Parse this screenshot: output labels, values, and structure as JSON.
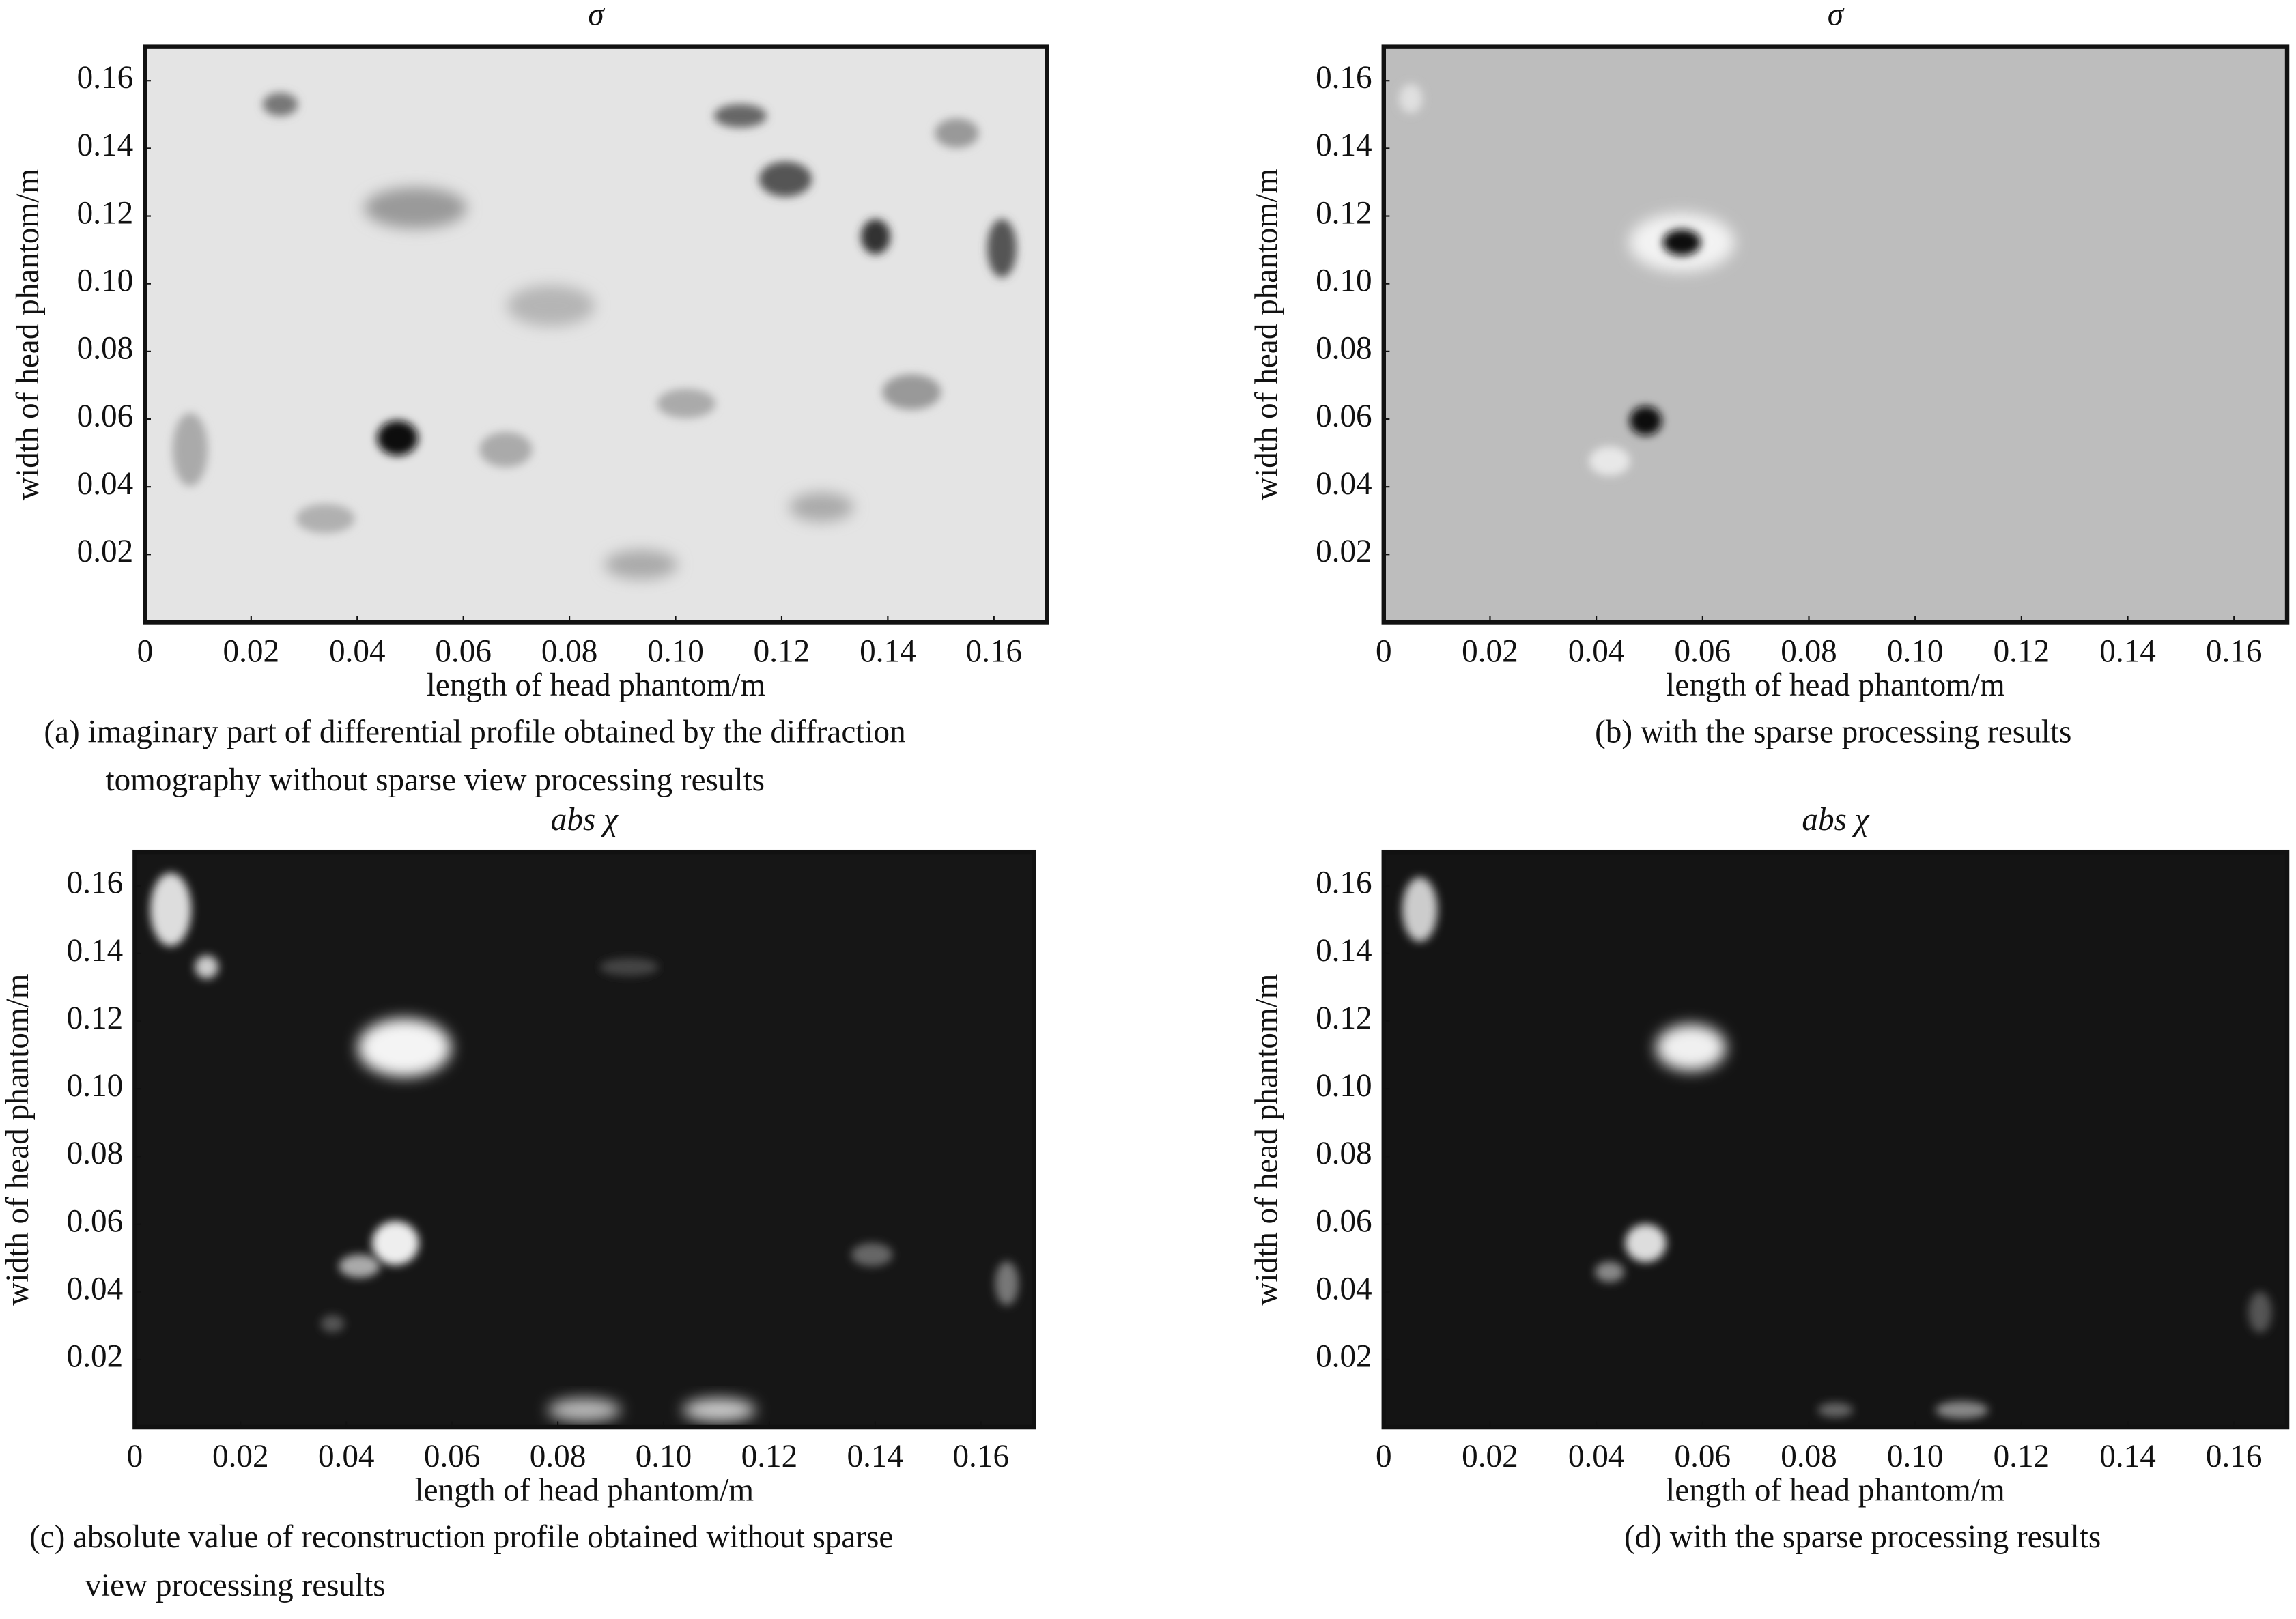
{
  "chart_data": [
    {
      "type": "image",
      "title": "σ",
      "xlabel": "length of head phantom/m",
      "ylabel": "width of head phantom/m",
      "caption": [
        "(a) imaginary part of differential profile obtained by the diffraction",
        "tomography without sparse view processing results"
      ],
      "xlim": [
        0,
        0.17
      ],
      "ylim": [
        0,
        0.17
      ],
      "xticks": [
        0,
        0.02,
        0.04,
        0.06,
        0.08,
        {
          "value": 0.1,
          "label": "0.10"
        },
        0.12,
        0.14,
        0.16
      ],
      "yticks": [
        0.02,
        0.04,
        0.06,
        0.08,
        {
          "value": 0.1,
          "label": "0.10"
        },
        0.12,
        0.14,
        0.16
      ]
    },
    {
      "type": "image",
      "title": "σ",
      "xlabel": "length of head phantom/m",
      "ylabel": "width of head phantom/m",
      "caption": [
        "(b) with the sparse processing results"
      ],
      "xlim": [
        0,
        0.17
      ],
      "ylim": [
        0,
        0.17
      ],
      "xticks": [
        0,
        0.02,
        0.04,
        0.06,
        0.08,
        {
          "value": 0.1,
          "label": "0.10"
        },
        0.12,
        0.14,
        0.16
      ],
      "yticks": [
        0.02,
        0.04,
        0.06,
        0.08,
        {
          "value": 0.1,
          "label": "0.10"
        },
        0.12,
        0.14,
        0.16
      ]
    },
    {
      "type": "image",
      "title": "abs χ",
      "xlabel": "length of head phantom/m",
      "ylabel": "width of head phantom/m",
      "caption": [
        "(c) absolute value of reconstruction profile obtained without sparse",
        "view processing results"
      ],
      "xlim": [
        0,
        0.17
      ],
      "ylim": [
        0,
        0.17
      ],
      "xticks": [
        0,
        0.02,
        0.04,
        0.06,
        0.08,
        {
          "value": 0.1,
          "label": "0.10"
        },
        0.12,
        0.14,
        0.16
      ],
      "yticks": [
        0.02,
        0.04,
        0.06,
        0.08,
        {
          "value": 0.1,
          "label": "0.10"
        },
        0.12,
        0.14,
        0.16
      ]
    },
    {
      "type": "image",
      "title": "abs χ",
      "xlabel": "length of head phantom/m",
      "ylabel": "width of head phantom/m",
      "caption": [
        "(d) with the sparse processing results"
      ],
      "xlim": [
        0,
        0.17
      ],
      "ylim": [
        0,
        0.17
      ],
      "xticks": [
        0,
        0.02,
        0.04,
        0.06,
        0.08,
        {
          "value": 0.1,
          "label": "0.10"
        },
        0.12,
        0.14,
        0.16
      ],
      "yticks": [
        0.02,
        0.04,
        0.06,
        0.08,
        {
          "value": 0.1,
          "label": "0.10"
        },
        0.12,
        0.14,
        0.16
      ]
    }
  ]
}
